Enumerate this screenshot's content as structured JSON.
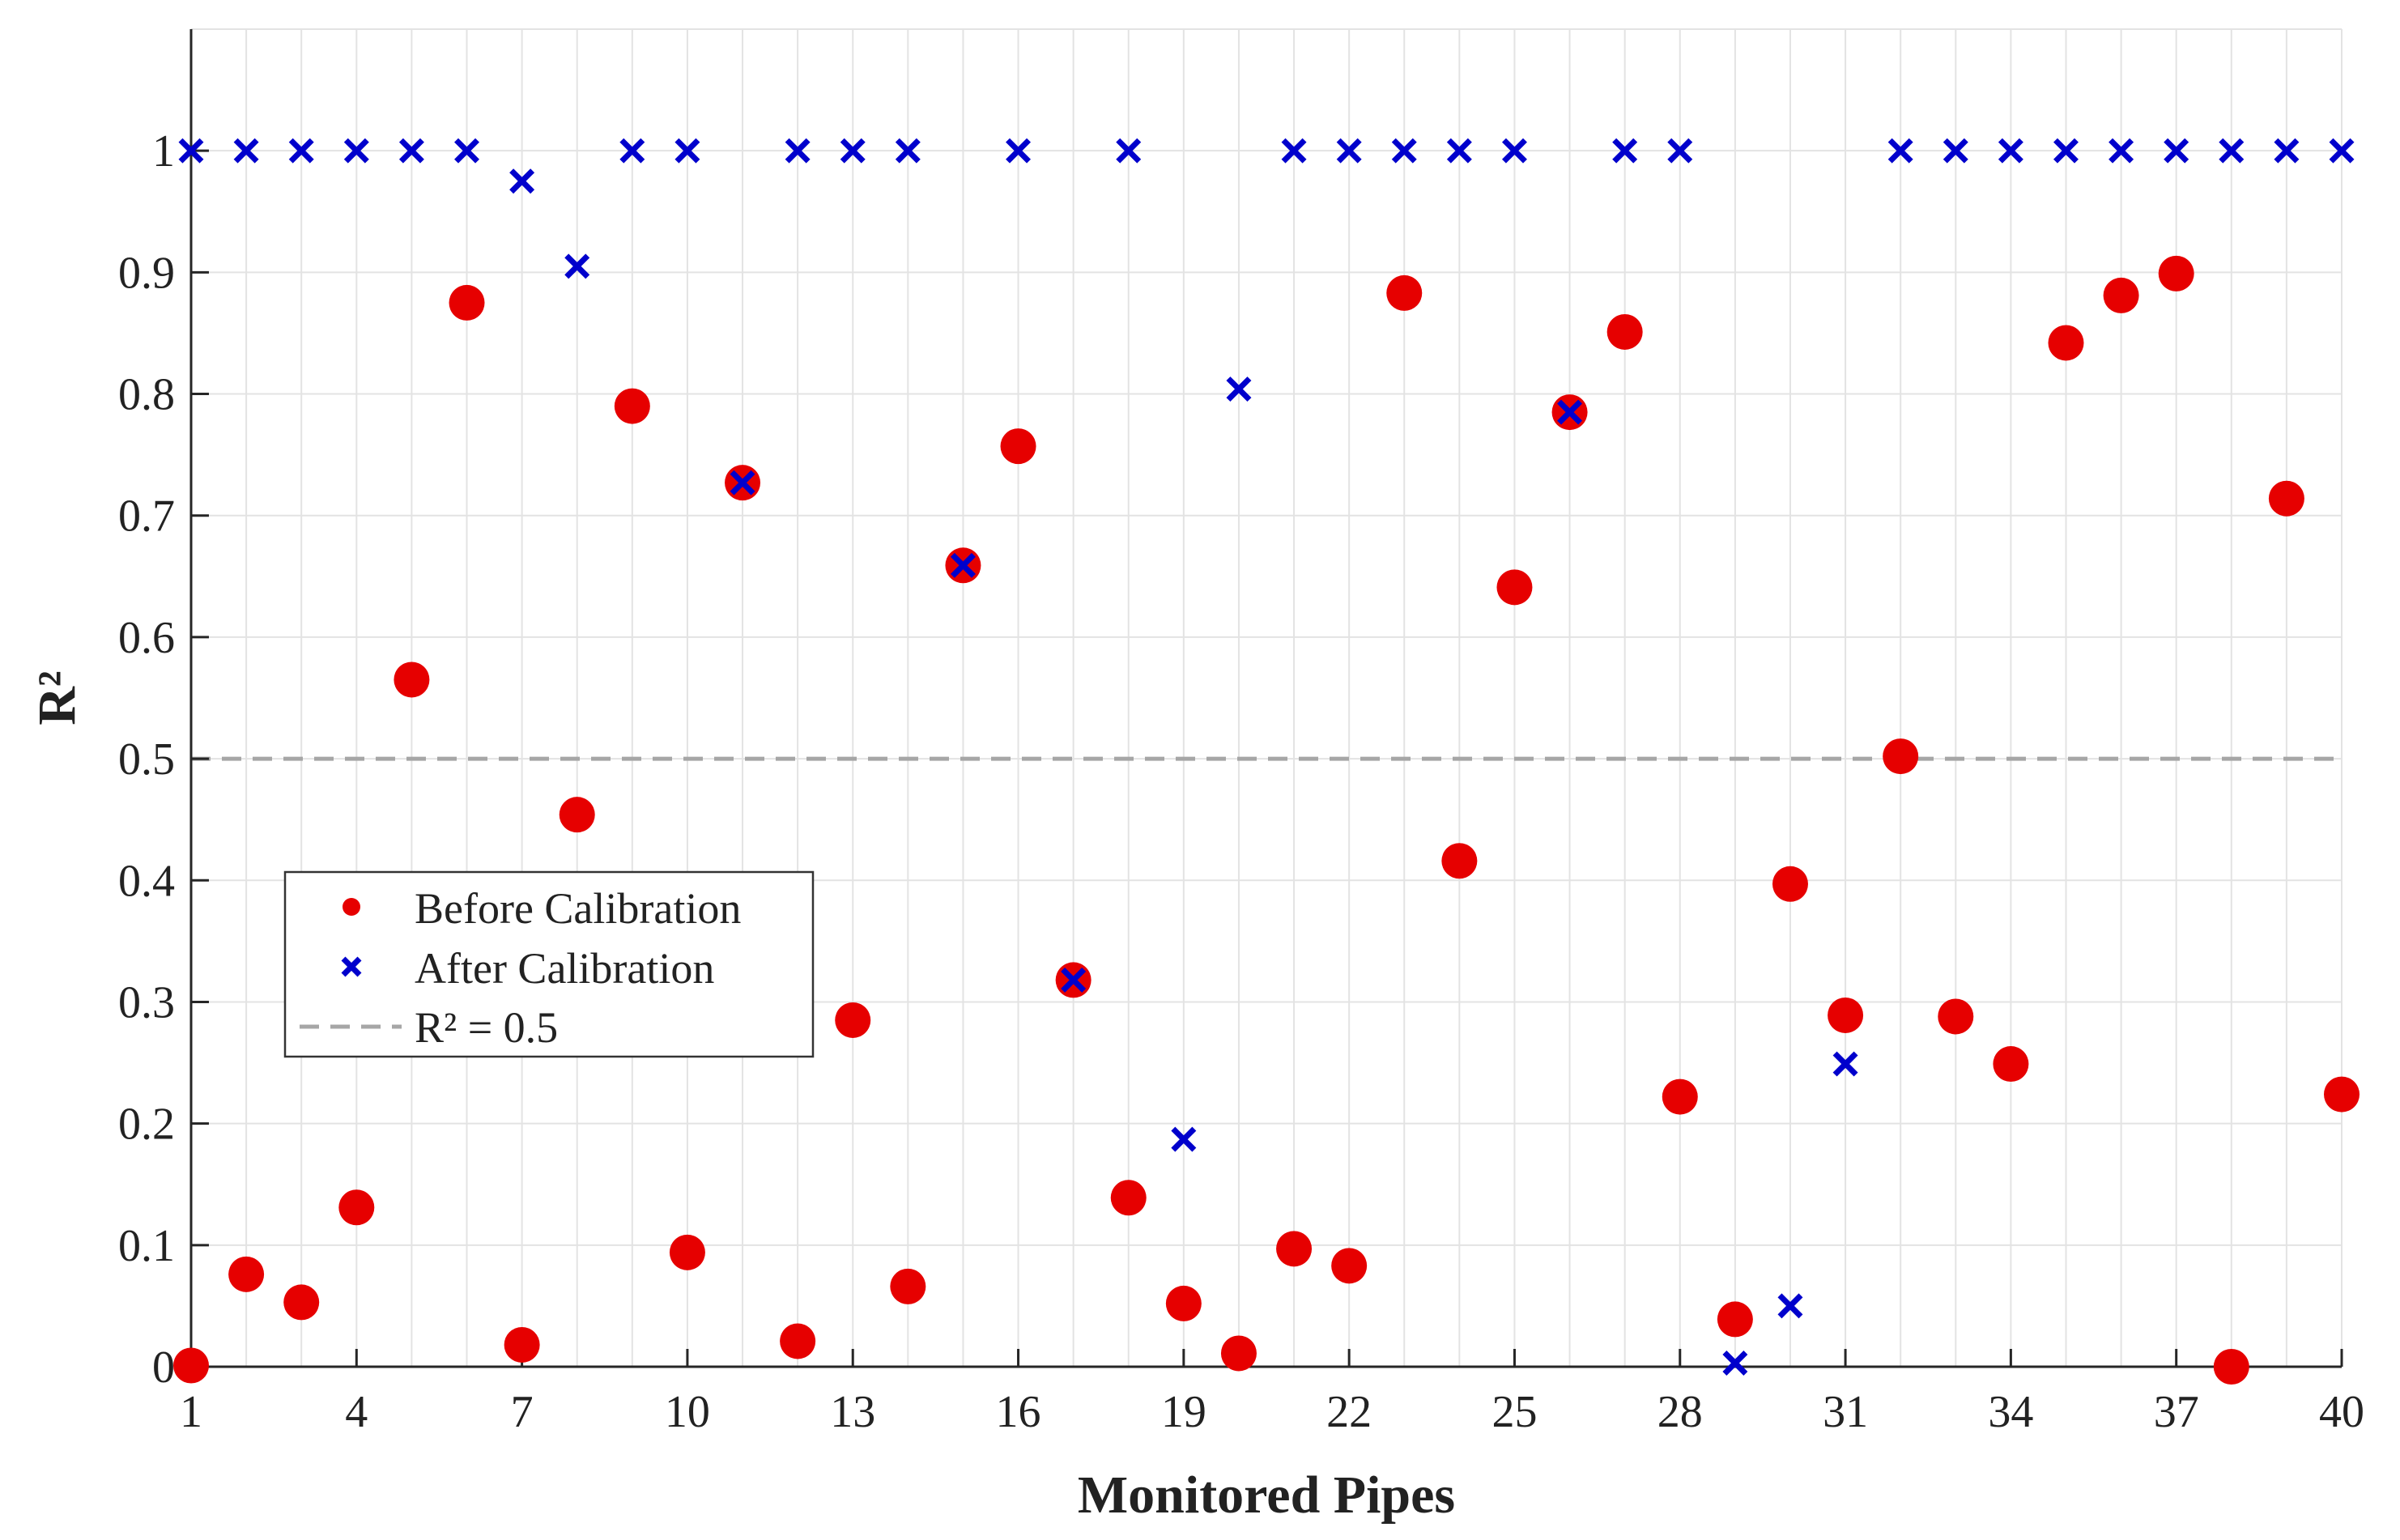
{
  "chart_data": {
    "type": "scatter",
    "xlabel": "Monitored Pipes",
    "ylabel": "R²",
    "xlim": [
      1,
      40
    ],
    "ylim": [
      0,
      1.1
    ],
    "xticks": [
      1,
      4,
      7,
      10,
      13,
      16,
      19,
      22,
      25,
      28,
      31,
      34,
      37,
      40
    ],
    "yticks": [
      0,
      0.1,
      0.2,
      0.3,
      0.4,
      0.5,
      0.6,
      0.7,
      0.8,
      0.9,
      1
    ],
    "ytick_labels": [
      "0",
      "0.1",
      "0.2",
      "0.3",
      "0.4",
      "0.5",
      "0.6",
      "0.7",
      "0.8",
      "0.9",
      "1"
    ],
    "grid": true,
    "legend_position": "middle-left",
    "series": [
      {
        "name": "Before Calibration",
        "marker": "circle",
        "color": "#e60000",
        "x": [
          1,
          2,
          3,
          4,
          5,
          6,
          7,
          8,
          9,
          10,
          11,
          12,
          13,
          14,
          15,
          16,
          17,
          18,
          19,
          20,
          21,
          22,
          23,
          24,
          25,
          26,
          27,
          28,
          29,
          30,
          31,
          32,
          33,
          34,
          35,
          36,
          37,
          38,
          39,
          40
        ],
        "values": [
          0.001,
          0.076,
          0.053,
          0.131,
          0.565,
          0.875,
          0.018,
          0.454,
          0.79,
          0.094,
          0.727,
          0.021,
          0.285,
          0.066,
          0.659,
          0.757,
          0.318,
          0.139,
          0.052,
          0.011,
          0.097,
          0.083,
          0.883,
          0.416,
          0.641,
          0.785,
          0.851,
          0.222,
          0.039,
          0.397,
          0.289,
          0.502,
          0.288,
          0.249,
          0.842,
          0.881,
          0.899,
          0.0,
          0.714,
          0.224
        ]
      },
      {
        "name": "After Calibration",
        "marker": "x",
        "color": "#0000cc",
        "x": [
          1,
          2,
          3,
          4,
          5,
          6,
          7,
          8,
          9,
          10,
          11,
          12,
          13,
          14,
          15,
          16,
          17,
          18,
          19,
          20,
          21,
          22,
          23,
          24,
          25,
          26,
          27,
          28,
          29,
          30,
          31,
          32,
          33,
          34,
          35,
          36,
          37,
          38,
          39,
          40
        ],
        "values": [
          1,
          1,
          1,
          1,
          1,
          1,
          0.975,
          0.905,
          1,
          1,
          0.727,
          1,
          1,
          1,
          0.659,
          1,
          0.318,
          1,
          0.187,
          0.804,
          1,
          1,
          1,
          1,
          1,
          0.785,
          1,
          1,
          0.003,
          0.05,
          0.249,
          1,
          1,
          1,
          1,
          1,
          1,
          1,
          1,
          1
        ]
      }
    ],
    "reference_line": {
      "y": 0.5,
      "label": "R² = 0.5",
      "style": "dashed",
      "color": "#a6a6a6"
    }
  }
}
